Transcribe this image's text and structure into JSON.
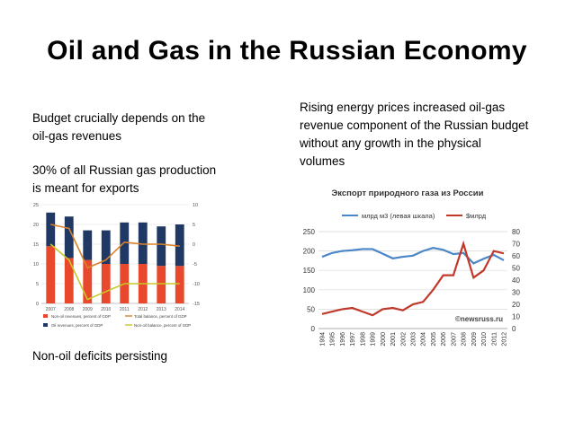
{
  "slide": {
    "title": "Oil and Gas in the Russian Economy",
    "left_text_1": "Budget crucially depends on the oil-gas revenues",
    "left_text_2": "30% of all Russian gas production is meant for exports",
    "left_text_3": "Non-oil deficits persisting",
    "right_text": "Rising energy prices increased oil-gas revenue component of the Russian budget without any growth in the physical volumes"
  },
  "chart_data": [
    {
      "type": "bar",
      "title": "",
      "categories": [
        "2007",
        "2008",
        "2009",
        "2010",
        "2011",
        "2012",
        "2013",
        "2014"
      ],
      "ylim": [
        0,
        25
      ],
      "y2lim": [
        -15,
        10
      ],
      "yticks": [
        "0",
        "5",
        "10",
        "15",
        "20",
        "25"
      ],
      "y2ticks": [
        "-15",
        "-10",
        "-5",
        "0",
        "5",
        "10"
      ],
      "series": [
        {
          "name": "Non-oil revenues, percent of GDP",
          "kind": "bar",
          "color": "#e8482c",
          "values": [
            14.5,
            11.5,
            11,
            10,
            10,
            10,
            9.5,
            9.5
          ]
        },
        {
          "name": "Oil revenues, percent of GDP",
          "kind": "bar",
          "color": "#1f3864",
          "values": [
            8.5,
            10.5,
            7.5,
            8.5,
            10.5,
            10.5,
            10,
            10.5
          ]
        },
        {
          "name": "Total balance, percent of GDP",
          "kind": "line",
          "axis": "right",
          "color": "#d9822b",
          "values": [
            5,
            4,
            -6,
            -4,
            0.5,
            0,
            0,
            -0.5
          ]
        },
        {
          "name": "Non-oil balance, percent of GDP",
          "kind": "line",
          "axis": "right",
          "color": "#c8c82a",
          "values": [
            0,
            -4,
            -14,
            -12,
            -10,
            -10,
            -10,
            -10
          ]
        }
      ],
      "legend": [
        "Non-oil revenues, percent of GDP",
        "Total balance, percent of GDP",
        "Oil revenues, percent of GDP",
        "Non-oil balance, percent of GDP"
      ]
    },
    {
      "type": "line",
      "title": "Экспорт природного газа из России",
      "x": [
        "1994",
        "1995",
        "1996",
        "1997",
        "1998",
        "1999",
        "2000",
        "2001",
        "2002",
        "2003",
        "2004",
        "2005",
        "2006",
        "2007",
        "2008",
        "2009",
        "2010",
        "2011",
        "2012"
      ],
      "ylim": [
        0,
        250
      ],
      "y2lim": [
        0,
        80
      ],
      "yticks": [
        "0",
        "50",
        "100",
        "150",
        "200",
        "250"
      ],
      "y2ticks": [
        "0",
        "10",
        "20",
        "30",
        "40",
        "50",
        "60",
        "70",
        "80"
      ],
      "series": [
        {
          "name": "млрд м3 (левая шкала)",
          "axis": "left",
          "color": "#4a86c8",
          "values": [
            185,
            195,
            200,
            202,
            205,
            205,
            193,
            181,
            185,
            188,
            200,
            208,
            203,
            192,
            195,
            168,
            180,
            190,
            176
          ]
        },
        {
          "name": "$млрд",
          "axis": "right",
          "color": "#c0392b",
          "values": [
            12,
            14,
            16,
            17,
            14,
            11,
            16,
            17,
            15,
            20,
            22,
            32,
            44,
            44,
            70,
            42,
            48,
            64,
            62
          ]
        }
      ],
      "annotation": "©newsruss.ru"
    }
  ]
}
